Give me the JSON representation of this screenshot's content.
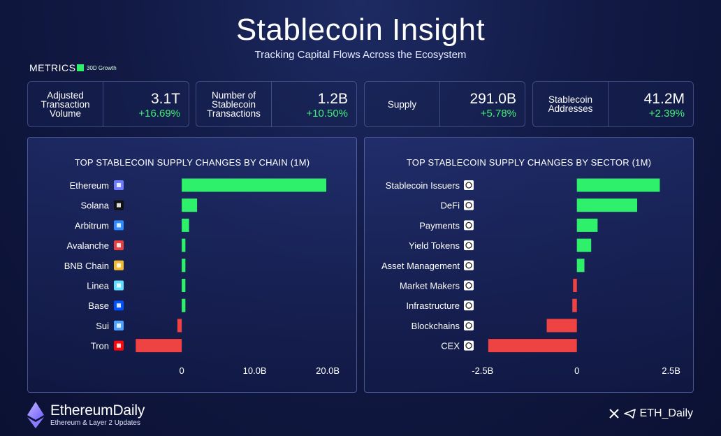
{
  "header": {
    "title": "Stablecoin Insight",
    "subtitle": "Tracking Capital Flows Across the Ecosystem",
    "metrics_label": "METRICS",
    "legend_label": "30D Growth",
    "legend_color": "#2ef06a"
  },
  "metrics": [
    {
      "label": "Adjusted Transaction Volume",
      "value": "3.1T",
      "change": "+16.69%"
    },
    {
      "label": "Number of Stablecoin Transactions",
      "value": "1.2B",
      "change": "+10.50%"
    },
    {
      "label": "Supply",
      "value": "291.0B",
      "change": "+5.78%"
    },
    {
      "label": "Stablecoin Addresses",
      "value": "41.2M",
      "change": "+2.39%"
    }
  ],
  "chart_data": [
    {
      "type": "bar",
      "orientation": "horizontal",
      "title": "TOP STABLECOIN SUPPLY CHANGES BY CHAIN (1M)",
      "categories": [
        "Ethereum",
        "Solana",
        "Arbitrum",
        "Avalanche",
        "BNB Chain",
        "Linea",
        "Base",
        "Sui",
        "Tron"
      ],
      "icons": [
        "ethereum-icon",
        "solana-icon",
        "arbitrum-icon",
        "avalanche-icon",
        "bnb-chain-icon",
        "linea-icon",
        "base-icon",
        "sui-icon",
        "tron-icon"
      ],
      "values": [
        19.8,
        2.1,
        1.0,
        0.5,
        0.5,
        0.5,
        0.5,
        -0.6,
        -6.3
      ],
      "xlim": [
        -7,
        22
      ],
      "ticks": [
        0,
        10,
        20
      ],
      "tick_labels": [
        "0",
        "10.0B",
        "20.0B"
      ],
      "positive_color": "#2ef06a",
      "negative_color": "#ef4343"
    },
    {
      "type": "bar",
      "orientation": "horizontal",
      "title": "TOP STABLECOIN SUPPLY CHANGES BY SECTOR (1M)",
      "categories": [
        "Stablecoin Issuers",
        "DeFi",
        "Payments",
        "Yield Tokens",
        "Asset Management",
        "Market Makers",
        "Infrastructure",
        "Blockchains",
        "CEX"
      ],
      "icons": [
        "issuers-icon",
        "defi-icon",
        "payments-icon",
        "yield-tokens-icon",
        "asset-management-icon",
        "market-makers-icon",
        "infrastructure-icon",
        "blockchains-icon",
        "cex-icon"
      ],
      "values": [
        2.2,
        1.6,
        0.55,
        0.38,
        0.2,
        -0.1,
        -0.12,
        -0.8,
        -2.35
      ],
      "xlim": [
        -2.7,
        2.6
      ],
      "ticks": [
        -2.5,
        0,
        2.5
      ],
      "tick_labels": [
        "-2.5B",
        "0",
        "2.5B"
      ],
      "positive_color": "#2ef06a",
      "negative_color": "#ef4343"
    }
  ],
  "footer": {
    "brand": "EthereumDaily",
    "tagline": "Ethereum & Layer 2 Updates",
    "handle": "ETH_Daily"
  }
}
